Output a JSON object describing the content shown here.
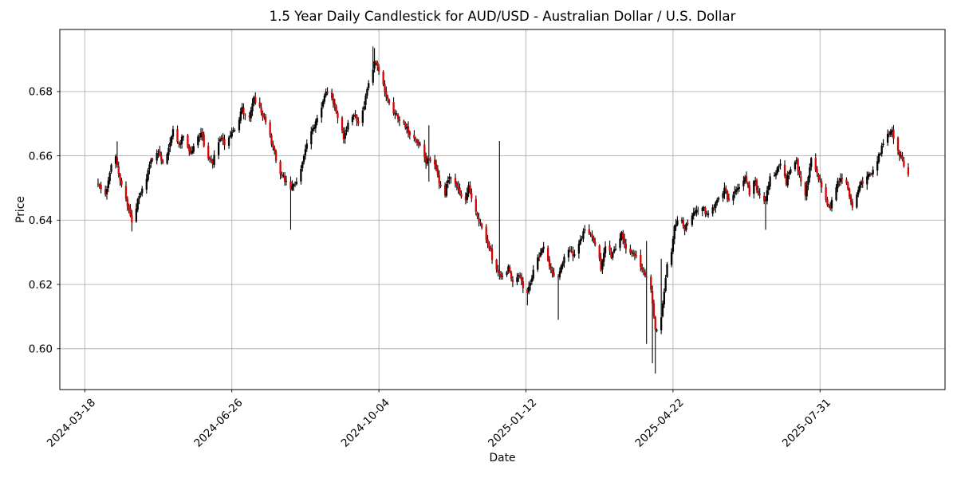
{
  "figure": {
    "background": "#ffffff"
  },
  "chart_data": {
    "type": "candlestick",
    "title": "1.5 Year Daily Candlestick for AUD/USD - Australian Dollar / U.S. Dollar",
    "xlabel": "Date",
    "ylabel": "Price",
    "grid": true,
    "ylim": [
      0.5873,
      0.6993
    ],
    "yticks": [
      0.6,
      0.62,
      0.64,
      0.66,
      0.68
    ],
    "ytick_labels": [
      "0.60",
      "0.62",
      "0.64",
      "0.66",
      "0.68"
    ],
    "xtick_labels": [
      "2024-03-18",
      "2024-06-26",
      "2024-10-04",
      "2025-01-12",
      "2025-04-22",
      "2025-07-31"
    ],
    "xtick_dates": [
      "2024-03-18",
      "2024-06-26",
      "2024-10-04",
      "2025-01-12",
      "2025-04-22",
      "2025-07-31"
    ],
    "x_date_min": "2024-03-01",
    "x_date_max": "2025-10-24",
    "series_start": "2024-03-27",
    "series_end": "2025-09-29",
    "frequency": "daily-weekdays",
    "price_min_observed": 0.5923,
    "price_max_observed": 0.694,
    "first_close": 0.652,
    "last_close": 0.6535,
    "colors": {
      "up_body": "#000000",
      "down_body": "#dd0000",
      "wick": "#000000",
      "grid": "#b0b0b0",
      "axis": "#000000",
      "text": "#000000",
      "background": "#ffffff"
    },
    "noise_seed": 7,
    "close_anchors": [
      [
        0,
        0.652
      ],
      [
        2,
        0.6495
      ],
      [
        5,
        0.6475
      ],
      [
        9,
        0.658
      ],
      [
        12,
        0.6595
      ],
      [
        13,
        0.6565
      ],
      [
        16,
        0.6505
      ],
      [
        20,
        0.645
      ],
      [
        23,
        0.639
      ],
      [
        27,
        0.646
      ],
      [
        31,
        0.6505
      ],
      [
        36,
        0.6585
      ],
      [
        40,
        0.6615
      ],
      [
        45,
        0.6575
      ],
      [
        51,
        0.6685
      ],
      [
        54,
        0.6625
      ],
      [
        58,
        0.6665
      ],
      [
        63,
        0.6605
      ],
      [
        67,
        0.665
      ],
      [
        70,
        0.6675
      ],
      [
        74,
        0.6595
      ],
      [
        78,
        0.6575
      ],
      [
        82,
        0.6655
      ],
      [
        87,
        0.6635
      ],
      [
        91,
        0.6665
      ],
      [
        95,
        0.6705
      ],
      [
        98,
        0.6745
      ],
      [
        102,
        0.67
      ],
      [
        106,
        0.6775
      ],
      [
        109,
        0.676
      ],
      [
        113,
        0.6715
      ],
      [
        116,
        0.6665
      ],
      [
        120,
        0.6615
      ],
      [
        123,
        0.6545
      ],
      [
        127,
        0.6525
      ],
      [
        130,
        0.649
      ],
      [
        134,
        0.6515
      ],
      [
        138,
        0.656
      ],
      [
        142,
        0.6635
      ],
      [
        146,
        0.668
      ],
      [
        149,
        0.6725
      ],
      [
        153,
        0.677
      ],
      [
        155,
        0.6795
      ],
      [
        159,
        0.6785
      ],
      [
        162,
        0.674
      ],
      [
        167,
        0.666
      ],
      [
        170,
        0.6695
      ],
      [
        174,
        0.6735
      ],
      [
        178,
        0.67
      ],
      [
        181,
        0.6755
      ],
      [
        185,
        0.685
      ],
      [
        187,
        0.69
      ],
      [
        190,
        0.6875
      ],
      [
        193,
        0.681
      ],
      [
        197,
        0.678
      ],
      [
        200,
        0.6745
      ],
      [
        204,
        0.672
      ],
      [
        209,
        0.6695
      ],
      [
        212,
        0.666
      ],
      [
        216,
        0.6645
      ],
      [
        219,
        0.6625
      ],
      [
        223,
        0.658
      ],
      [
        225,
        0.6595
      ],
      [
        229,
        0.6565
      ],
      [
        232,
        0.652
      ],
      [
        235,
        0.646
      ],
      [
        238,
        0.6525
      ],
      [
        242,
        0.6535
      ],
      [
        245,
        0.649
      ],
      [
        249,
        0.6455
      ],
      [
        252,
        0.65
      ],
      [
        255,
        0.6445
      ],
      [
        258,
        0.6405
      ],
      [
        262,
        0.6365
      ],
      [
        266,
        0.6315
      ],
      [
        269,
        0.627
      ],
      [
        271,
        0.625
      ],
      [
        273,
        0.6235
      ],
      [
        275,
        0.6225
      ],
      [
        279,
        0.6255
      ],
      [
        282,
        0.621
      ],
      [
        286,
        0.6235
      ],
      [
        289,
        0.6195
      ],
      [
        292,
        0.6175
      ],
      [
        295,
        0.6225
      ],
      [
        299,
        0.6285
      ],
      [
        303,
        0.632
      ],
      [
        306,
        0.6265
      ],
      [
        310,
        0.6225
      ],
      [
        313,
        0.6225
      ],
      [
        317,
        0.629
      ],
      [
        320,
        0.631
      ],
      [
        324,
        0.6285
      ],
      [
        328,
        0.6335
      ],
      [
        332,
        0.6385
      ],
      [
        335,
        0.635
      ],
      [
        339,
        0.632
      ],
      [
        342,
        0.625
      ],
      [
        345,
        0.6315
      ],
      [
        349,
        0.629
      ],
      [
        353,
        0.632
      ],
      [
        356,
        0.6365
      ],
      [
        359,
        0.631
      ],
      [
        363,
        0.6305
      ],
      [
        367,
        0.629
      ],
      [
        370,
        0.6245
      ],
      [
        373,
        0.6215
      ],
      [
        375,
        0.608
      ],
      [
        377,
        0.5995
      ],
      [
        379,
        0.5985
      ],
      [
        382,
        0.6185
      ],
      [
        385,
        0.6315
      ],
      [
        388,
        0.6355
      ],
      [
        392,
        0.6385
      ],
      [
        396,
        0.641
      ],
      [
        399,
        0.6375
      ],
      [
        403,
        0.6405
      ],
      [
        407,
        0.6435
      ],
      [
        411,
        0.6445
      ],
      [
        414,
        0.6415
      ],
      [
        418,
        0.644
      ],
      [
        422,
        0.6465
      ],
      [
        426,
        0.65
      ],
      [
        429,
        0.6455
      ],
      [
        433,
        0.649
      ],
      [
        437,
        0.651
      ],
      [
        440,
        0.6535
      ],
      [
        443,
        0.6485
      ],
      [
        446,
        0.654
      ],
      [
        449,
        0.6475
      ],
      [
        454,
        0.6465
      ],
      [
        457,
        0.653
      ],
      [
        461,
        0.6555
      ],
      [
        464,
        0.658
      ],
      [
        468,
        0.652
      ],
      [
        472,
        0.657
      ],
      [
        475,
        0.6585
      ],
      [
        478,
        0.6515
      ],
      [
        481,
        0.6475
      ],
      [
        485,
        0.66
      ],
      [
        488,
        0.6555
      ],
      [
        492,
        0.651
      ],
      [
        494,
        0.6445
      ],
      [
        498,
        0.6445
      ],
      [
        501,
        0.6495
      ],
      [
        505,
        0.6535
      ],
      [
        508,
        0.6525
      ],
      [
        511,
        0.6475
      ],
      [
        513,
        0.6435
      ],
      [
        517,
        0.65
      ],
      [
        520,
        0.652
      ],
      [
        524,
        0.6545
      ],
      [
        528,
        0.6555
      ],
      [
        531,
        0.66
      ],
      [
        534,
        0.664
      ],
      [
        537,
        0.6665
      ],
      [
        540,
        0.6675
      ],
      [
        542,
        0.6625
      ],
      [
        546,
        0.66
      ],
      [
        548,
        0.6575
      ],
      [
        551,
        0.6535
      ]
    ],
    "wick_events": [
      {
        "day": 13,
        "high": 0.6645
      },
      {
        "day": 23,
        "low": 0.6365
      },
      {
        "day": 131,
        "low": 0.637
      },
      {
        "day": 187,
        "high": 0.694
      },
      {
        "day": 188,
        "high": 0.6935
      },
      {
        "day": 225,
        "high": 0.6695,
        "low": 0.652
      },
      {
        "day": 273,
        "high": 0.6646,
        "low": 0.6215
      },
      {
        "day": 292,
        "low": 0.6135
      },
      {
        "day": 313,
        "low": 0.609
      },
      {
        "day": 373,
        "high": 0.6335,
        "low": 0.6095
      },
      {
        "day": 374,
        "high": 0.6275,
        "low": 0.6015
      },
      {
        "day": 377,
        "low": 0.5955
      },
      {
        "day": 379,
        "low": 0.5923
      },
      {
        "day": 382,
        "high": 0.628,
        "low": 0.6125
      },
      {
        "day": 454,
        "low": 0.637
      },
      {
        "day": 540,
        "high": 0.669
      }
    ]
  }
}
